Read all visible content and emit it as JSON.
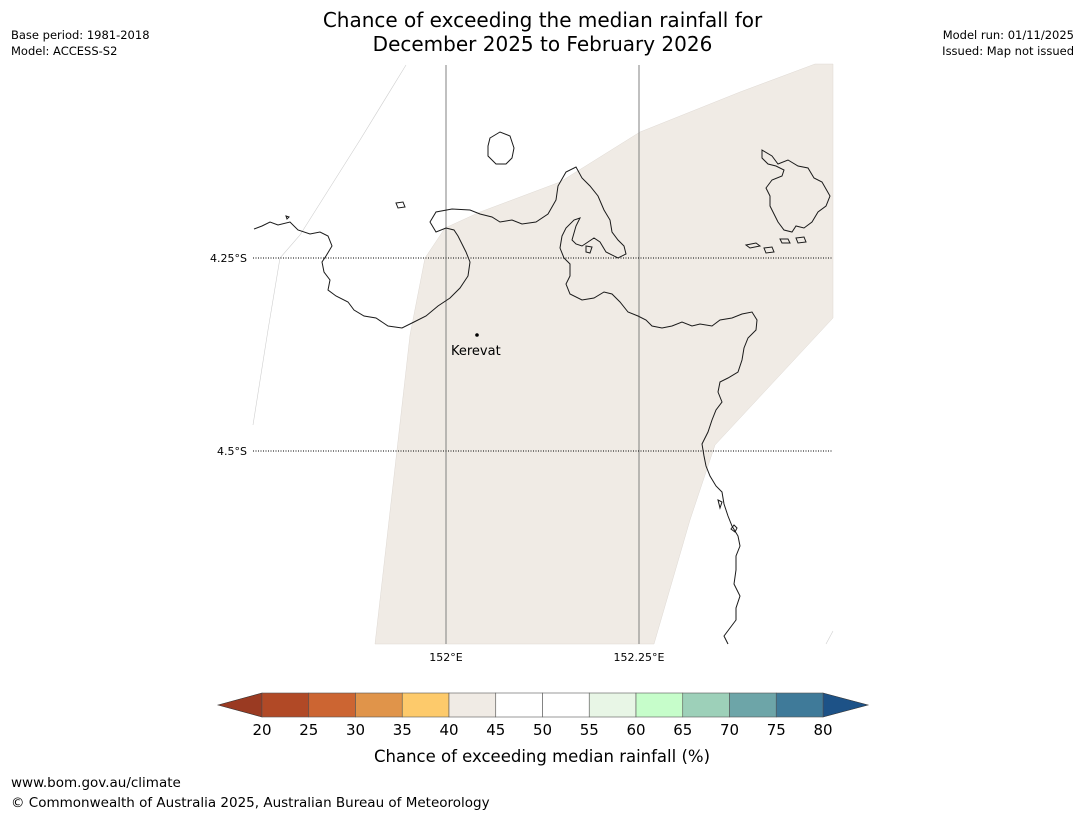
{
  "header": {
    "base_period": "Base period: 1981-2018",
    "model": "Model: ACCESS-S2",
    "model_run": "Model run: 01/11/2025",
    "issued": "Issued: Map not issued"
  },
  "title": {
    "line1": "Chance of exceeding the median rainfall for",
    "line2": "December 2025 to February 2026"
  },
  "map": {
    "lat_labels": [
      "4.25°S",
      "4.5°S"
    ],
    "lon_labels": [
      "152°E",
      "152.25°E"
    ],
    "place": {
      "name": "Kerevat"
    },
    "region_fill": "#f0ebe5"
  },
  "colorbar": {
    "ticks": [
      "20",
      "25",
      "30",
      "35",
      "40",
      "45",
      "50",
      "55",
      "60",
      "65",
      "70",
      "75",
      "80"
    ],
    "colors": [
      "#b14926",
      "#cc6532",
      "#e0944a",
      "#fdca6b",
      "#f0ebe5",
      "#ffffff",
      "#ffffff",
      "#e8f6e6",
      "#c6fdca",
      "#9dd0b9",
      "#6da5a8",
      "#3f7a99"
    ],
    "low_extend_color": "#9a3a22",
    "high_extend_color": "#1d5287",
    "label": "Chance of exceeding median rainfall (%)"
  },
  "footer": {
    "url": "www.bom.gov.au/climate",
    "copyright": "© Commonwealth of Australia 2025, Australian Bureau of Meteorology"
  }
}
